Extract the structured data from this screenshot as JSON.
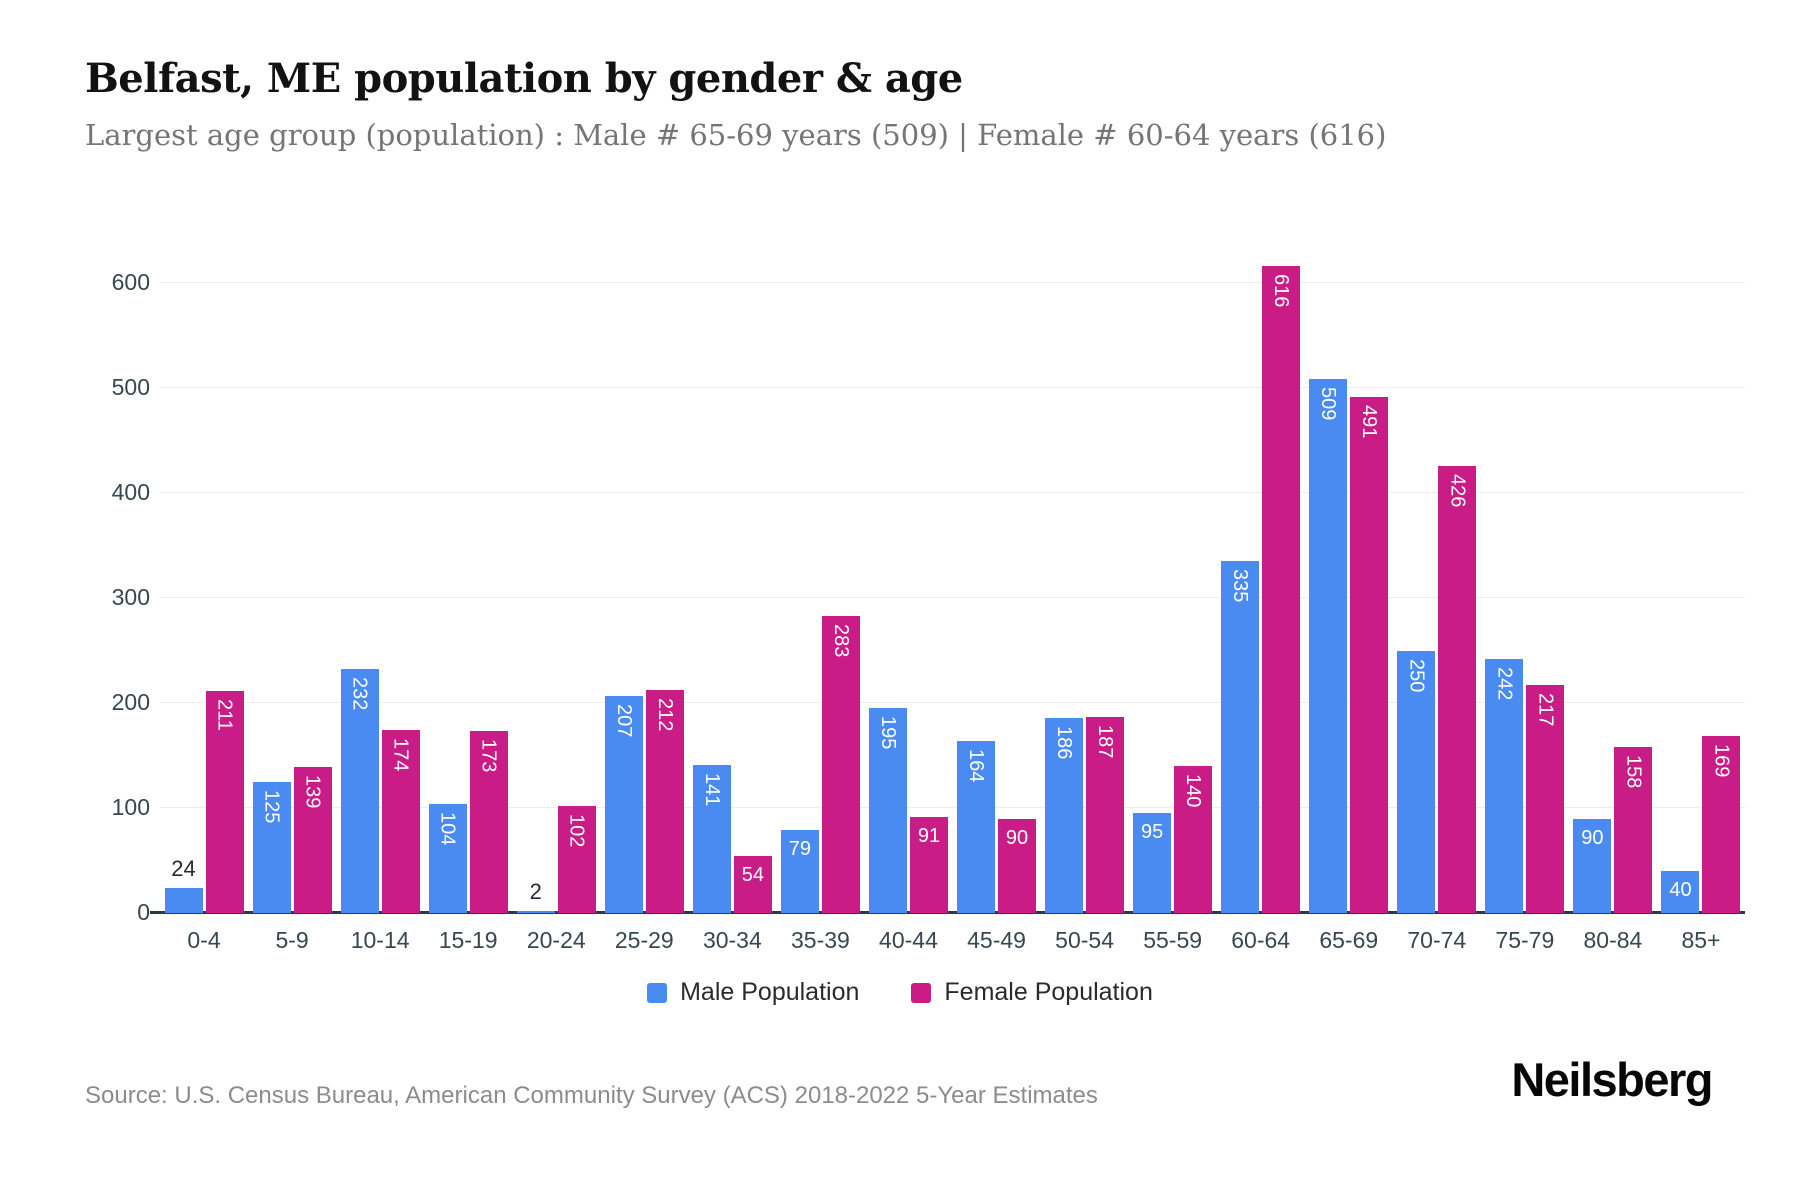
{
  "header": {
    "title": "Belfast, ME population by gender & age",
    "subtitle": "Largest age group (population) : Male # 65-69 years (509) | Female # 60-64 years (616)"
  },
  "chart_data": {
    "type": "bar",
    "title": "Belfast, ME population by gender & age",
    "categories": [
      "0-4",
      "5-9",
      "10-14",
      "15-19",
      "20-24",
      "25-29",
      "30-34",
      "35-39",
      "40-44",
      "45-49",
      "50-54",
      "55-59",
      "60-64",
      "65-69",
      "70-74",
      "75-79",
      "80-84",
      "85+"
    ],
    "series": [
      {
        "name": "Male Population",
        "color": "#4A8BF2",
        "values": [
          24,
          125,
          232,
          104,
          2,
          207,
          141,
          79,
          195,
          164,
          186,
          95,
          335,
          509,
          250,
          242,
          90,
          40
        ]
      },
      {
        "name": "Female Population",
        "color": "#C91C86",
        "values": [
          211,
          139,
          174,
          173,
          102,
          212,
          54,
          283,
          91,
          90,
          187,
          140,
          616,
          491,
          426,
          217,
          158,
          169
        ]
      }
    ],
    "xlabel": "",
    "ylabel": "",
    "ylim": [
      0,
      600
    ],
    "yticks": [
      0,
      100,
      200,
      300,
      400,
      500,
      600
    ],
    "grid": true,
    "legend_position": "bottom",
    "bar_label_color_inside": "#ffffff",
    "bar_label_color_outside": "#2b2b2b"
  },
  "footer": {
    "source": "Source: U.S. Census Bureau, American Community Survey (ACS) 2018-2022 5-Year Estimates",
    "brand": "Neilsberg"
  }
}
